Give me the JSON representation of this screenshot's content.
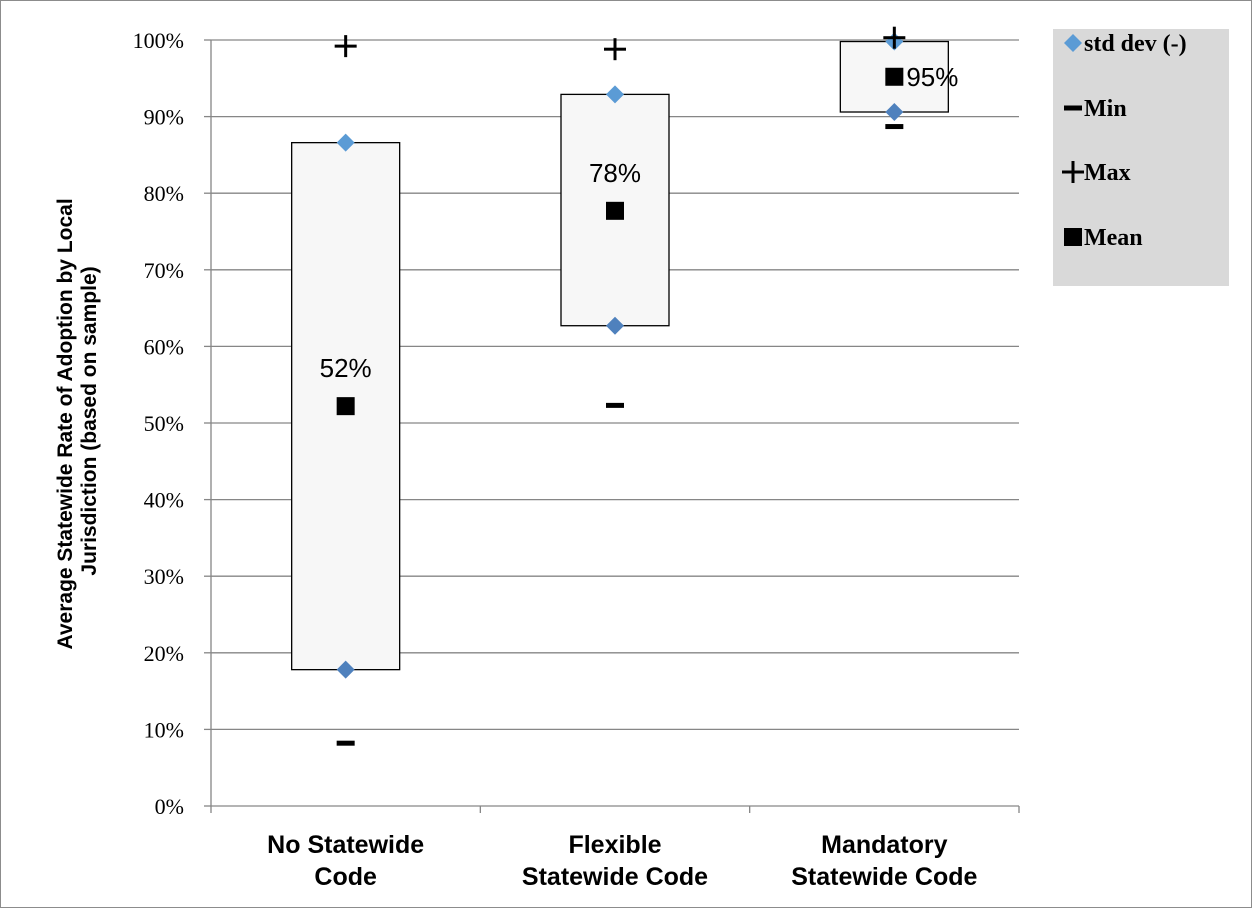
{
  "chart_data": {
    "type": "box",
    "ylabel_lines": [
      "Average Statewide Rate of Adoption by Local",
      "Jurisdiction (based on sample)"
    ],
    "ylim": [
      0,
      100
    ],
    "y_ticks": [
      "0%",
      "10%",
      "20%",
      "30%",
      "40%",
      "50%",
      "60%",
      "70%",
      "80%",
      "90%",
      "100%"
    ],
    "grid": true,
    "legend_position": "top-right",
    "categories": [
      {
        "lines": [
          "No Statewide",
          "Code"
        ],
        "mean": 52.2,
        "std_low": 17.8,
        "std_high": 86.6,
        "min": 8.2,
        "max": 99.2,
        "mean_label": "52%"
      },
      {
        "lines": [
          "Flexible",
          "Statewide Code"
        ],
        "mean": 77.7,
        "std_low": 62.7,
        "std_high": 92.9,
        "min": 52.3,
        "max": 98.8,
        "mean_label": "78%"
      },
      {
        "lines": [
          "Mandatory",
          "Statewide Code"
        ],
        "mean": 95.2,
        "std_low": 90.6,
        "std_high": 99.8,
        "min": 88.7,
        "max": 100.3,
        "mean_label": "95%"
      }
    ],
    "legend": [
      {
        "marker": "diamond",
        "label": "std dev (-)"
      },
      {
        "marker": "minus",
        "label": "Min"
      },
      {
        "marker": "plus",
        "label": "Max"
      },
      {
        "marker": "square",
        "label": "Mean"
      }
    ],
    "colors": {
      "diamond": "#4f81bd",
      "diamond_light": "#5b9bd5",
      "box_fill": "#f7f7f7",
      "grid": "#868686",
      "legend_bg": "#d9d9d9"
    }
  }
}
